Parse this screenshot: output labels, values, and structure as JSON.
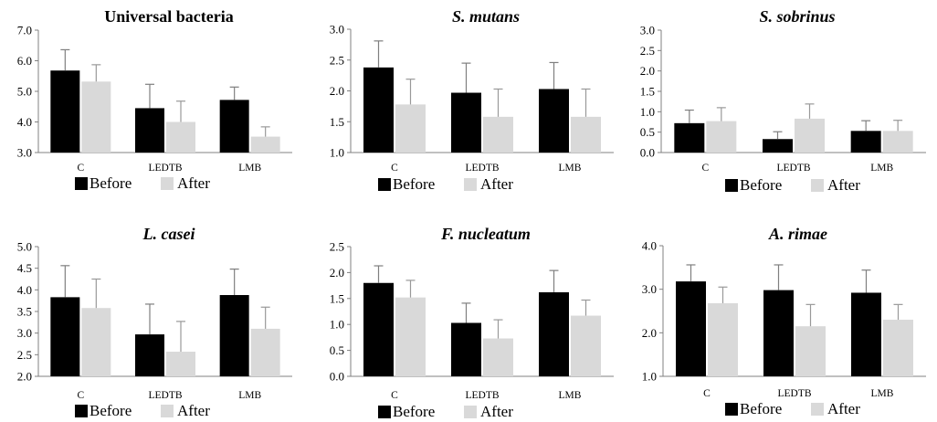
{
  "colors": {
    "before": "#000000",
    "after": "#d9d9d9",
    "error_bar_before": "#7f7f7f",
    "error_bar_after": "#999999",
    "axis": "#808080"
  },
  "legend": {
    "before": "Before",
    "after": "After",
    "position": "bottom"
  },
  "chart_data": [
    {
      "type": "bar",
      "title": "Universal bacteria",
      "title_italic": false,
      "categories": [
        "C",
        "LEDTB",
        "LMB"
      ],
      "ylim": [
        3.0,
        7.0
      ],
      "yticks": [
        "3.0",
        "4.0",
        "5.0",
        "6.0",
        "7.0"
      ],
      "grid": false,
      "series": [
        {
          "name": "Before",
          "values": [
            5.68,
            4.45,
            4.72
          ],
          "errors": [
            0.68,
            0.78,
            0.42
          ]
        },
        {
          "name": "After",
          "values": [
            5.32,
            4.0,
            3.52
          ],
          "errors": [
            0.55,
            0.68,
            0.32
          ]
        }
      ]
    },
    {
      "type": "bar",
      "title": "S. mutans",
      "title_italic": true,
      "categories": [
        "C",
        "LEDTB",
        "LMB"
      ],
      "ylim": [
        1.0,
        3.0
      ],
      "yticks": [
        "1.0",
        "1.5",
        "2.0",
        "2.5",
        "3.0"
      ],
      "grid": false,
      "series": [
        {
          "name": "Before",
          "values": [
            2.38,
            1.97,
            2.03
          ],
          "errors": [
            0.43,
            0.48,
            0.43
          ]
        },
        {
          "name": "After",
          "values": [
            1.78,
            1.58,
            1.58
          ],
          "errors": [
            0.41,
            0.45,
            0.45
          ]
        }
      ]
    },
    {
      "type": "bar",
      "title": "S. sobrinus",
      "title_italic": true,
      "categories": [
        "C",
        "LEDTB",
        "LMB"
      ],
      "ylim": [
        0.0,
        3.0
      ],
      "yticks": [
        "0.0",
        "0.5",
        "1.0",
        "1.5",
        "2.0",
        "2.5",
        "3.0"
      ],
      "grid": false,
      "series": [
        {
          "name": "Before",
          "values": [
            0.72,
            0.33,
            0.53
          ],
          "errors": [
            0.32,
            0.18,
            0.25
          ]
        },
        {
          "name": "After",
          "values": [
            0.77,
            0.83,
            0.53
          ],
          "errors": [
            0.33,
            0.36,
            0.26
          ]
        }
      ]
    },
    {
      "type": "bar",
      "title": "L. casei",
      "title_italic": true,
      "categories": [
        "C",
        "LEDTB",
        "LMB"
      ],
      "ylim": [
        2.0,
        5.0
      ],
      "yticks": [
        "2.0",
        "2.5",
        "3.0",
        "3.5",
        "4.0",
        "4.5",
        "5.0"
      ],
      "grid": false,
      "series": [
        {
          "name": "Before",
          "values": [
            3.83,
            2.97,
            3.88
          ],
          "errors": [
            0.73,
            0.7,
            0.6
          ]
        },
        {
          "name": "After",
          "values": [
            3.58,
            2.57,
            3.1
          ],
          "errors": [
            0.67,
            0.7,
            0.5
          ]
        }
      ]
    },
    {
      "type": "bar",
      "title": "F. nucleatum",
      "title_italic": true,
      "categories": [
        "C",
        "LEDTB",
        "LMB"
      ],
      "ylim": [
        0.0,
        2.5
      ],
      "yticks": [
        "0.0",
        "0.5",
        "1.0",
        "1.5",
        "2.0",
        "2.5"
      ],
      "grid": false,
      "series": [
        {
          "name": "Before",
          "values": [
            1.8,
            1.03,
            1.62
          ],
          "errors": [
            0.33,
            0.38,
            0.42
          ]
        },
        {
          "name": "After",
          "values": [
            1.52,
            0.73,
            1.17
          ],
          "errors": [
            0.33,
            0.36,
            0.3
          ]
        }
      ]
    },
    {
      "type": "bar",
      "title": "A. rimae",
      "title_italic": true,
      "categories": [
        "C",
        "LEDTB",
        "LMB"
      ],
      "ylim": [
        1.0,
        4.0
      ],
      "yticks": [
        "1.0",
        "2.0",
        "3.0",
        "4.0"
      ],
      "grid": false,
      "series": [
        {
          "name": "Before",
          "values": [
            3.18,
            2.98,
            2.92
          ],
          "errors": [
            0.38,
            0.58,
            0.52
          ]
        },
        {
          "name": "After",
          "values": [
            2.68,
            2.15,
            2.3
          ],
          "errors": [
            0.37,
            0.5,
            0.35
          ]
        }
      ]
    }
  ]
}
